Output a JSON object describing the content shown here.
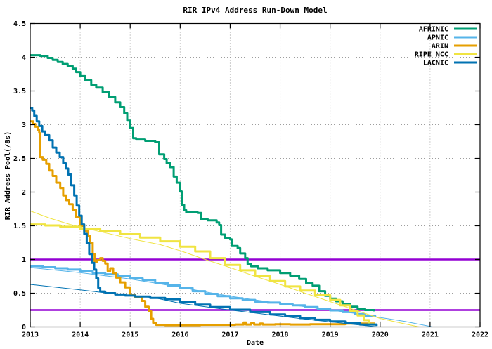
{
  "chart_data": {
    "type": "line",
    "title": "RIR IPv4 Address Run-Down Model",
    "xlabel": "Date",
    "ylabel": "RIR Address Pool(/8s)",
    "xlim": [
      2013,
      2022
    ],
    "ylim": [
      0,
      4.5
    ],
    "x_ticks": [
      2013,
      2014,
      2015,
      2016,
      2017,
      2018,
      2019,
      2020,
      2021,
      2022
    ],
    "x_tick_labels": [
      "2013",
      "2014",
      "2015",
      "2016",
      "2017",
      "2018",
      "2019",
      "2020",
      "2021",
      "2022"
    ],
    "y_ticks": [
      0,
      0.5,
      1,
      1.5,
      2,
      2.5,
      3,
      3.5,
      4,
      4.5
    ],
    "y_tick_labels": [
      "0",
      "0.5",
      "1",
      "1.5",
      "2",
      "2.5",
      "3",
      "3.5",
      "4",
      "4.5"
    ],
    "grid": true,
    "grid_color": "#9e9e9e",
    "border_color": "#000000",
    "legend_position": "top-right-inside",
    "thresholds": [
      {
        "y": 1.0,
        "color": "#9400d3",
        "width": 2.5,
        "label": "last-/8-threshold-1.0"
      },
      {
        "y": 0.25,
        "color": "#9400d3",
        "width": 2.5,
        "label": "last-/8-threshold-0.25"
      }
    ],
    "series": [
      {
        "name": "AFRINIC",
        "id": "afrinic",
        "color": "#009e73",
        "width": 3,
        "style": "steps",
        "role": "actual",
        "legend": true,
        "points": [
          [
            2013.0,
            4.03
          ],
          [
            2013.2,
            4.02
          ],
          [
            2013.35,
            3.99
          ],
          [
            2013.45,
            3.96
          ],
          [
            2013.55,
            3.93
          ],
          [
            2013.65,
            3.9
          ],
          [
            2013.75,
            3.87
          ],
          [
            2013.85,
            3.83
          ],
          [
            2013.92,
            3.78
          ],
          [
            2014.0,
            3.72
          ],
          [
            2014.1,
            3.66
          ],
          [
            2014.22,
            3.59
          ],
          [
            2014.32,
            3.55
          ],
          [
            2014.45,
            3.48
          ],
          [
            2014.58,
            3.41
          ],
          [
            2014.7,
            3.33
          ],
          [
            2014.8,
            3.26
          ],
          [
            2014.88,
            3.17
          ],
          [
            2014.94,
            3.06
          ],
          [
            2015.0,
            2.95
          ],
          [
            2015.06,
            2.8
          ],
          [
            2015.12,
            2.78
          ],
          [
            2015.3,
            2.76
          ],
          [
            2015.5,
            2.74
          ],
          [
            2015.58,
            2.56
          ],
          [
            2015.68,
            2.49
          ],
          [
            2015.73,
            2.43
          ],
          [
            2015.8,
            2.37
          ],
          [
            2015.87,
            2.23
          ],
          [
            2015.93,
            2.14
          ],
          [
            2015.99,
            2.01
          ],
          [
            2016.03,
            1.81
          ],
          [
            2016.08,
            1.73
          ],
          [
            2016.12,
            1.7
          ],
          [
            2016.35,
            1.69
          ],
          [
            2016.42,
            1.6
          ],
          [
            2016.55,
            1.58
          ],
          [
            2016.73,
            1.55
          ],
          [
            2016.78,
            1.51
          ],
          [
            2016.82,
            1.37
          ],
          [
            2016.9,
            1.32
          ],
          [
            2017.0,
            1.3
          ],
          [
            2017.03,
            1.2
          ],
          [
            2017.15,
            1.17
          ],
          [
            2017.2,
            1.09
          ],
          [
            2017.3,
            1.02
          ],
          [
            2017.35,
            0.93
          ],
          [
            2017.42,
            0.9
          ],
          [
            2017.55,
            0.87
          ],
          [
            2017.75,
            0.84
          ],
          [
            2018.0,
            0.8
          ],
          [
            2018.2,
            0.76
          ],
          [
            2018.38,
            0.71
          ],
          [
            2018.52,
            0.65
          ],
          [
            2018.65,
            0.61
          ],
          [
            2018.78,
            0.53
          ],
          [
            2018.9,
            0.46
          ],
          [
            2019.0,
            0.42
          ],
          [
            2019.12,
            0.38
          ],
          [
            2019.25,
            0.34
          ],
          [
            2019.4,
            0.3
          ],
          [
            2019.55,
            0.27
          ],
          [
            2019.7,
            0.25
          ],
          [
            2019.88,
            0.23
          ]
        ]
      },
      {
        "name": "APNIC",
        "id": "apnic",
        "color": "#56b4e9",
        "width": 3,
        "style": "steps",
        "role": "actual",
        "legend": true,
        "points": [
          [
            2013.0,
            0.9
          ],
          [
            2013.25,
            0.885
          ],
          [
            2013.5,
            0.87
          ],
          [
            2013.75,
            0.85
          ],
          [
            2014.0,
            0.83
          ],
          [
            2014.25,
            0.8
          ],
          [
            2014.5,
            0.78
          ],
          [
            2014.75,
            0.755
          ],
          [
            2015.0,
            0.72
          ],
          [
            2015.25,
            0.695
          ],
          [
            2015.5,
            0.655
          ],
          [
            2015.75,
            0.615
          ],
          [
            2016.0,
            0.575
          ],
          [
            2016.25,
            0.53
          ],
          [
            2016.5,
            0.49
          ],
          [
            2016.75,
            0.455
          ],
          [
            2017.0,
            0.425
          ],
          [
            2017.25,
            0.4
          ],
          [
            2017.5,
            0.375
          ],
          [
            2017.75,
            0.36
          ],
          [
            2018.0,
            0.34
          ],
          [
            2018.25,
            0.32
          ],
          [
            2018.5,
            0.295
          ],
          [
            2018.75,
            0.27
          ],
          [
            2019.0,
            0.245
          ],
          [
            2019.25,
            0.22
          ],
          [
            2019.5,
            0.19
          ],
          [
            2019.7,
            0.165
          ],
          [
            2019.9,
            0.145
          ]
        ]
      },
      {
        "name": "APNIC model",
        "id": "apnic-model",
        "color": "#56b4e9",
        "width": 1,
        "style": "line",
        "role": "model",
        "legend": false,
        "points": [
          [
            2013.0,
            0.88
          ],
          [
            2014.0,
            0.805
          ],
          [
            2015.0,
            0.71
          ],
          [
            2016.0,
            0.59
          ],
          [
            2016.5,
            0.52
          ],
          [
            2017.0,
            0.455
          ],
          [
            2017.5,
            0.4
          ],
          [
            2018.0,
            0.35
          ],
          [
            2018.5,
            0.3
          ],
          [
            2019.0,
            0.25
          ],
          [
            2019.5,
            0.2
          ],
          [
            2020.0,
            0.14
          ],
          [
            2020.5,
            0.08
          ],
          [
            2021.05,
            0.0
          ]
        ]
      },
      {
        "name": "ARIN",
        "id": "arin",
        "color": "#e69f00",
        "width": 3,
        "style": "steps",
        "role": "actual",
        "legend": true,
        "points": [
          [
            2013.0,
            3.05
          ],
          [
            2013.06,
            3.01
          ],
          [
            2013.1,
            2.97
          ],
          [
            2013.15,
            2.92
          ],
          [
            2013.18,
            2.88
          ],
          [
            2013.19,
            2.52
          ],
          [
            2013.25,
            2.48
          ],
          [
            2013.32,
            2.42
          ],
          [
            2013.38,
            2.32
          ],
          [
            2013.45,
            2.24
          ],
          [
            2013.52,
            2.14
          ],
          [
            2013.6,
            2.06
          ],
          [
            2013.66,
            1.95
          ],
          [
            2013.72,
            1.88
          ],
          [
            2013.78,
            1.82
          ],
          [
            2013.85,
            1.74
          ],
          [
            2013.92,
            1.63
          ],
          [
            2014.0,
            1.5
          ],
          [
            2014.08,
            1.42
          ],
          [
            2014.15,
            1.35
          ],
          [
            2014.2,
            1.25
          ],
          [
            2014.25,
            1.08
          ],
          [
            2014.29,
            0.96
          ],
          [
            2014.34,
            0.99
          ],
          [
            2014.4,
            1.02
          ],
          [
            2014.45,
            0.98
          ],
          [
            2014.5,
            0.94
          ],
          [
            2014.55,
            0.83
          ],
          [
            2014.6,
            0.87
          ],
          [
            2014.66,
            0.8
          ],
          [
            2014.72,
            0.73
          ],
          [
            2014.8,
            0.66
          ],
          [
            2014.9,
            0.585
          ],
          [
            2015.0,
            0.475
          ],
          [
            2015.1,
            0.44
          ],
          [
            2015.23,
            0.385
          ],
          [
            2015.3,
            0.3
          ],
          [
            2015.37,
            0.23
          ],
          [
            2015.42,
            0.12
          ],
          [
            2015.46,
            0.06
          ],
          [
            2015.52,
            0.03
          ],
          [
            2015.7,
            0.025
          ],
          [
            2016.0,
            0.025
          ],
          [
            2016.4,
            0.03
          ],
          [
            2016.8,
            0.03
          ],
          [
            2017.1,
            0.035
          ],
          [
            2017.27,
            0.065
          ],
          [
            2017.32,
            0.035
          ],
          [
            2017.42,
            0.055
          ],
          [
            2017.48,
            0.035
          ],
          [
            2017.6,
            0.05
          ],
          [
            2017.65,
            0.035
          ],
          [
            2017.9,
            0.04
          ],
          [
            2018.2,
            0.035
          ],
          [
            2018.6,
            0.04
          ],
          [
            2019.0,
            0.04
          ],
          [
            2019.3,
            0.05
          ],
          [
            2019.6,
            0.05
          ],
          [
            2019.9,
            0.05
          ]
        ]
      },
      {
        "name": "RIPE NCC",
        "id": "ripe-ncc",
        "color": "#f0e442",
        "width": 3,
        "style": "steps",
        "role": "actual",
        "legend": true,
        "points": [
          [
            2013.0,
            1.52
          ],
          [
            2013.3,
            1.505
          ],
          [
            2013.6,
            1.485
          ],
          [
            2014.0,
            1.455
          ],
          [
            2014.4,
            1.42
          ],
          [
            2014.8,
            1.375
          ],
          [
            2015.2,
            1.325
          ],
          [
            2015.6,
            1.27
          ],
          [
            2016.0,
            1.19
          ],
          [
            2016.3,
            1.12
          ],
          [
            2016.6,
            1.02
          ],
          [
            2016.9,
            0.92
          ],
          [
            2017.2,
            0.84
          ],
          [
            2017.5,
            0.76
          ],
          [
            2017.8,
            0.68
          ],
          [
            2018.1,
            0.6
          ],
          [
            2018.4,
            0.54
          ],
          [
            2018.7,
            0.47
          ],
          [
            2019.0,
            0.4
          ],
          [
            2019.2,
            0.32
          ],
          [
            2019.4,
            0.24
          ],
          [
            2019.55,
            0.17
          ],
          [
            2019.68,
            0.1
          ],
          [
            2019.78,
            0.04
          ],
          [
            2019.88,
            0.02
          ]
        ]
      },
      {
        "name": "RIPE NCC model",
        "id": "ripe-ncc-model",
        "color": "#f0e442",
        "width": 1,
        "style": "line",
        "role": "model",
        "legend": false,
        "points": [
          [
            2013.0,
            1.72
          ],
          [
            2013.4,
            1.61
          ],
          [
            2013.8,
            1.52
          ],
          [
            2014.3,
            1.43
          ],
          [
            2015.0,
            1.31
          ],
          [
            2015.6,
            1.22
          ],
          [
            2016.0,
            1.13
          ],
          [
            2016.5,
            1.0
          ],
          [
            2017.0,
            0.88
          ],
          [
            2017.5,
            0.75
          ],
          [
            2018.0,
            0.63
          ],
          [
            2018.5,
            0.5
          ],
          [
            2019.0,
            0.375
          ],
          [
            2019.5,
            0.25
          ],
          [
            2020.0,
            0.125
          ],
          [
            2020.4,
            0.06
          ],
          [
            2020.78,
            0.0
          ]
        ]
      },
      {
        "name": "LACNIC",
        "id": "lacnic",
        "color": "#0072b2",
        "width": 3,
        "style": "steps",
        "role": "actual",
        "legend": true,
        "points": [
          [
            2013.0,
            3.25
          ],
          [
            2013.04,
            3.21
          ],
          [
            2013.08,
            3.13
          ],
          [
            2013.13,
            3.05
          ],
          [
            2013.18,
            2.98
          ],
          [
            2013.24,
            2.9
          ],
          [
            2013.3,
            2.845
          ],
          [
            2013.38,
            2.77
          ],
          [
            2013.45,
            2.66
          ],
          [
            2013.52,
            2.585
          ],
          [
            2013.59,
            2.52
          ],
          [
            2013.66,
            2.43
          ],
          [
            2013.71,
            2.35
          ],
          [
            2013.76,
            2.26
          ],
          [
            2013.82,
            2.1
          ],
          [
            2013.88,
            1.95
          ],
          [
            2013.93,
            1.8
          ],
          [
            2013.98,
            1.65
          ],
          [
            2014.03,
            1.52
          ],
          [
            2014.08,
            1.38
          ],
          [
            2014.13,
            1.24
          ],
          [
            2014.18,
            1.08
          ],
          [
            2014.23,
            0.95
          ],
          [
            2014.28,
            0.85
          ],
          [
            2014.32,
            0.72
          ],
          [
            2014.36,
            0.58
          ],
          [
            2014.4,
            0.525
          ],
          [
            2014.5,
            0.5
          ],
          [
            2014.7,
            0.48
          ],
          [
            2014.9,
            0.465
          ],
          [
            2015.1,
            0.45
          ],
          [
            2015.4,
            0.43
          ],
          [
            2015.7,
            0.41
          ],
          [
            2016.0,
            0.37
          ],
          [
            2016.3,
            0.33
          ],
          [
            2016.6,
            0.295
          ],
          [
            2017.0,
            0.255
          ],
          [
            2017.4,
            0.22
          ],
          [
            2017.8,
            0.185
          ],
          [
            2018.1,
            0.16
          ],
          [
            2018.4,
            0.13
          ],
          [
            2018.7,
            0.105
          ],
          [
            2019.0,
            0.08
          ],
          [
            2019.3,
            0.055
          ],
          [
            2019.6,
            0.035
          ],
          [
            2019.93,
            0.015
          ]
        ]
      },
      {
        "name": "LACNIC model",
        "id": "lacnic-model",
        "color": "#0072b2",
        "width": 1,
        "style": "line",
        "role": "model",
        "legend": false,
        "points": [
          [
            2013.0,
            0.63
          ],
          [
            2013.5,
            0.59
          ],
          [
            2014.0,
            0.55
          ],
          [
            2014.4,
            0.515
          ],
          [
            2015.0,
            0.47
          ],
          [
            2015.5,
            0.43
          ],
          [
            2016.0,
            0.35
          ],
          [
            2016.5,
            0.3
          ],
          [
            2017.0,
            0.25
          ],
          [
            2017.5,
            0.205
          ],
          [
            2018.0,
            0.16
          ],
          [
            2018.5,
            0.115
          ],
          [
            2019.0,
            0.075
          ],
          [
            2019.5,
            0.035
          ],
          [
            2019.95,
            0.0
          ]
        ]
      }
    ]
  }
}
